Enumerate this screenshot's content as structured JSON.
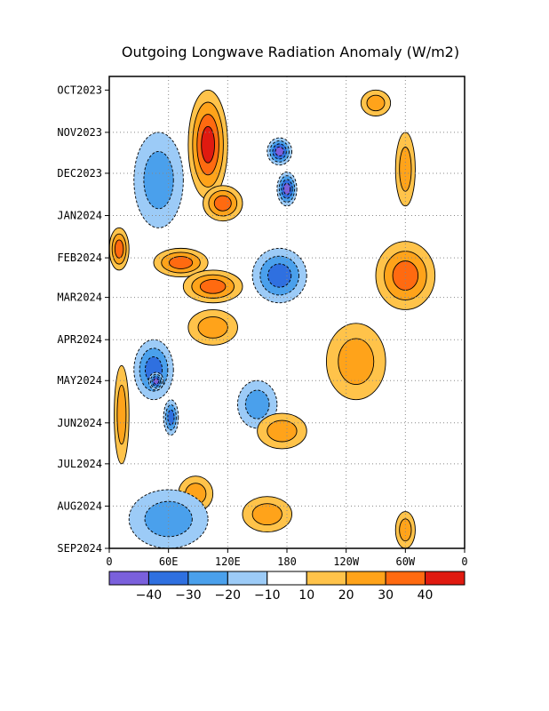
{
  "chart_data": {
    "type": "heatmap",
    "title": "Outgoing Longwave Radiation Anomaly (W/m2)",
    "xlabel": "",
    "ylabel": "",
    "x_ticks": [
      "0",
      "60E",
      "120E",
      "180",
      "120W",
      "60W",
      "0"
    ],
    "y_ticks": [
      "OCT2023",
      "NOV2023",
      "DEC2023",
      "JAN2024",
      "FEB2024",
      "MAR2024",
      "APR2024",
      "MAY2024",
      "JUN2024",
      "JUL2024",
      "AUG2024",
      "SEP2024"
    ],
    "grid": true,
    "colorbar": {
      "labels": [
        "-40",
        "-30",
        "-20",
        "-10",
        "10",
        "20",
        "30",
        "40"
      ],
      "colors": [
        "#7a60dc",
        "#2f70e0",
        "#4aa0ec",
        "#9ccbf7",
        "#ffffff",
        "#ffc34a",
        "#ffa31a",
        "#ff6a10",
        "#e01a10"
      ]
    },
    "anomaly_features": [
      {
        "lon_start": 80,
        "lon_end": 120,
        "date_start": "2023-10-01",
        "date_end": "2023-12-20",
        "value": 40
      },
      {
        "lon_start": 95,
        "lon_end": 135,
        "date_start": "2023-12-10",
        "date_end": "2024-01-05",
        "value": 35
      },
      {
        "lon_start": 25,
        "lon_end": 75,
        "date_start": "2023-11-01",
        "date_end": "2024-01-10",
        "value": -20
      },
      {
        "lon_start": 160,
        "lon_end": 185,
        "date_start": "2023-11-05",
        "date_end": "2023-11-25",
        "value": -40
      },
      {
        "lon_start": 170,
        "lon_end": 190,
        "date_start": "2023-11-30",
        "date_end": "2023-12-25",
        "value": -40
      },
      {
        "lon_start": 0,
        "lon_end": 20,
        "date_start": "2024-01-10",
        "date_end": "2024-02-10",
        "value": 30
      },
      {
        "lon_start": 45,
        "lon_end": 100,
        "date_start": "2024-01-25",
        "date_end": "2024-02-15",
        "value": 35
      },
      {
        "lon_start": 75,
        "lon_end": 135,
        "date_start": "2024-02-10",
        "date_end": "2024-03-05",
        "value": 35
      },
      {
        "lon_start": 270,
        "lon_end": 330,
        "date_start": "2024-01-20",
        "date_end": "2024-03-10",
        "value": 30
      },
      {
        "lon_start": 145,
        "lon_end": 200,
        "date_start": "2024-01-25",
        "date_end": "2024-03-05",
        "value": -30
      },
      {
        "lon_start": 290,
        "lon_end": 310,
        "date_start": "2023-11-01",
        "date_end": "2023-12-25",
        "value": 20
      },
      {
        "lon_start": 255,
        "lon_end": 285,
        "date_start": "2023-10-01",
        "date_end": "2023-10-20",
        "value": 20
      },
      {
        "lon_start": 25,
        "lon_end": 65,
        "date_start": "2024-04-01",
        "date_end": "2024-05-15",
        "value": -30
      },
      {
        "lon_start": 40,
        "lon_end": 55,
        "date_start": "2024-04-25",
        "date_end": "2024-05-08",
        "value": -40
      },
      {
        "lon_start": 5,
        "lon_end": 20,
        "date_start": "2024-04-20",
        "date_end": "2024-07-01",
        "value": 20
      },
      {
        "lon_start": 55,
        "lon_end": 70,
        "date_start": "2024-05-15",
        "date_end": "2024-06-10",
        "value": -30
      },
      {
        "lon_start": 80,
        "lon_end": 130,
        "date_start": "2024-03-10",
        "date_end": "2024-04-05",
        "value": 20
      },
      {
        "lon_start": 220,
        "lon_end": 280,
        "date_start": "2024-03-20",
        "date_end": "2024-05-15",
        "value": 20
      },
      {
        "lon_start": 130,
        "lon_end": 170,
        "date_start": "2024-05-01",
        "date_end": "2024-06-05",
        "value": -20
      },
      {
        "lon_start": 150,
        "lon_end": 200,
        "date_start": "2024-05-25",
        "date_end": "2024-06-20",
        "value": 20
      },
      {
        "lon_start": 70,
        "lon_end": 105,
        "date_start": "2024-07-10",
        "date_end": "2024-08-05",
        "value": 20
      },
      {
        "lon_start": 135,
        "lon_end": 185,
        "date_start": "2024-07-25",
        "date_end": "2024-08-20",
        "value": 20
      },
      {
        "lon_start": 20,
        "lon_end": 100,
        "date_start": "2024-07-20",
        "date_end": "2024-09-01",
        "value": -20
      },
      {
        "lon_start": 290,
        "lon_end": 310,
        "date_start": "2024-08-05",
        "date_end": "2024-09-01",
        "value": 20
      }
    ]
  }
}
